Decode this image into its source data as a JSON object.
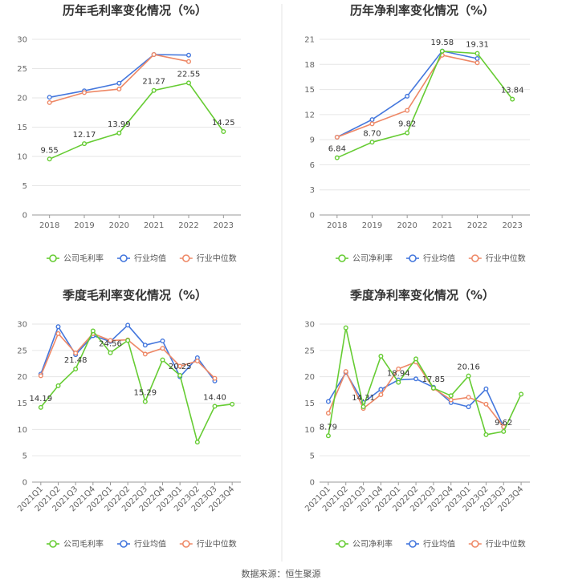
{
  "colors": {
    "company": "#66cc33",
    "industry_avg": "#4477dd",
    "industry_median": "#ee8866"
  },
  "source": "数据来源：恒生聚源",
  "chart_data": [
    {
      "type": "line",
      "title": "历年毛利率变化情况（%）",
      "categories": [
        "2018",
        "2019",
        "2020",
        "2021",
        "2022",
        "2023"
      ],
      "ylim": [
        0,
        30
      ],
      "yticks": [
        0,
        5,
        10,
        15,
        20,
        25,
        30
      ],
      "legend": "bottom",
      "series": [
        {
          "name": "公司毛利率",
          "color": "#66cc33",
          "values": [
            9.55,
            12.17,
            13.99,
            21.27,
            22.55,
            14.25
          ],
          "labels": [
            "9.55",
            "12.17",
            "13.99",
            "21.27",
            "22.55",
            "14.25"
          ]
        },
        {
          "name": "行业均值",
          "color": "#4477dd",
          "values": [
            20.1,
            21.2,
            22.5,
            27.4,
            27.3,
            null
          ]
        },
        {
          "name": "行业中位数",
          "color": "#ee8866",
          "values": [
            19.2,
            20.9,
            21.5,
            27.4,
            26.2,
            null
          ]
        }
      ]
    },
    {
      "type": "line",
      "title": "历年净利率变化情况（%）",
      "categories": [
        "2018",
        "2019",
        "2020",
        "2021",
        "2022",
        "2023"
      ],
      "ylim": [
        0,
        21
      ],
      "yticks": [
        0,
        3,
        6,
        9,
        12,
        15,
        18,
        21
      ],
      "legend": "bottom",
      "series": [
        {
          "name": "公司净利率",
          "color": "#66cc33",
          "values": [
            6.84,
            8.7,
            9.82,
            19.58,
            19.31,
            13.84
          ],
          "labels": [
            "6.84",
            "8.70",
            "9.82",
            "19.58",
            "19.31",
            "13.84"
          ]
        },
        {
          "name": "行业均值",
          "color": "#4477dd",
          "values": [
            9.3,
            11.4,
            14.2,
            19.6,
            18.7,
            null
          ]
        },
        {
          "name": "行业中位数",
          "color": "#ee8866",
          "values": [
            9.3,
            10.9,
            12.5,
            19.1,
            18.2,
            null
          ]
        }
      ]
    },
    {
      "type": "line",
      "title": "季度毛利率变化情况（%）",
      "categories": [
        "2021Q1",
        "2021Q2",
        "2021Q3",
        "2021Q4",
        "2022Q1",
        "2022Q2",
        "2022Q3",
        "2022Q4",
        "2023Q1",
        "2023Q2",
        "2023Q3",
        "2023Q4"
      ],
      "ylim": [
        0,
        30
      ],
      "yticks": [
        0,
        5,
        10,
        15,
        20,
        25,
        30
      ],
      "rotate_x": true,
      "legend": "bottom",
      "series": [
        {
          "name": "公司毛利率",
          "color": "#66cc33",
          "values": [
            14.19,
            18.3,
            21.48,
            28.7,
            24.56,
            26.9,
            15.29,
            23.2,
            20.25,
            7.6,
            14.4,
            14.8
          ],
          "labels": [
            "14.19",
            "",
            "21.48",
            "",
            "24.56",
            "",
            "15.29",
            "",
            "20.25",
            "",
            "14.40",
            ""
          ]
        },
        {
          "name": "行业均值",
          "color": "#4477dd",
          "values": [
            20.5,
            29.5,
            24.2,
            27.8,
            26.7,
            29.8,
            26.0,
            26.8,
            20.0,
            23.6,
            19.2,
            null
          ]
        },
        {
          "name": "行业中位数",
          "color": "#ee8866",
          "values": [
            20.2,
            28.2,
            24.5,
            28.2,
            26.9,
            27.0,
            24.3,
            25.4,
            22.0,
            23.0,
            19.7,
            null
          ]
        }
      ]
    },
    {
      "type": "line",
      "title": "季度净利率变化情况（%）",
      "categories": [
        "2021Q1",
        "2021Q2",
        "2021Q3",
        "2021Q4",
        "2022Q1",
        "2022Q2",
        "2022Q3",
        "2022Q4",
        "2023Q1",
        "2023Q2",
        "2023Q3",
        "2023Q4"
      ],
      "ylim": [
        0,
        30
      ],
      "yticks": [
        0,
        5,
        10,
        15,
        20,
        25,
        30
      ],
      "rotate_x": true,
      "legend": "bottom",
      "series": [
        {
          "name": "公司净利率",
          "color": "#66cc33",
          "values": [
            8.79,
            29.3,
            14.31,
            23.9,
            18.94,
            23.4,
            17.85,
            16.4,
            20.16,
            9.0,
            9.62,
            16.7
          ],
          "labels": [
            "8.79",
            "",
            "14.31",
            "",
            "18.94",
            "",
            "17.85",
            "",
            "20.16",
            "",
            "9.62",
            ""
          ]
        },
        {
          "name": "行业均值",
          "color": "#4477dd",
          "values": [
            15.3,
            20.8,
            15.1,
            17.6,
            19.4,
            19.6,
            18.0,
            15.1,
            14.3,
            17.7,
            10.5,
            null
          ]
        },
        {
          "name": "行业中位数",
          "color": "#ee8866",
          "values": [
            13.1,
            21.0,
            14.0,
            16.6,
            21.5,
            22.8,
            17.8,
            15.6,
            16.1,
            14.8,
            10.5,
            null
          ]
        }
      ]
    }
  ]
}
